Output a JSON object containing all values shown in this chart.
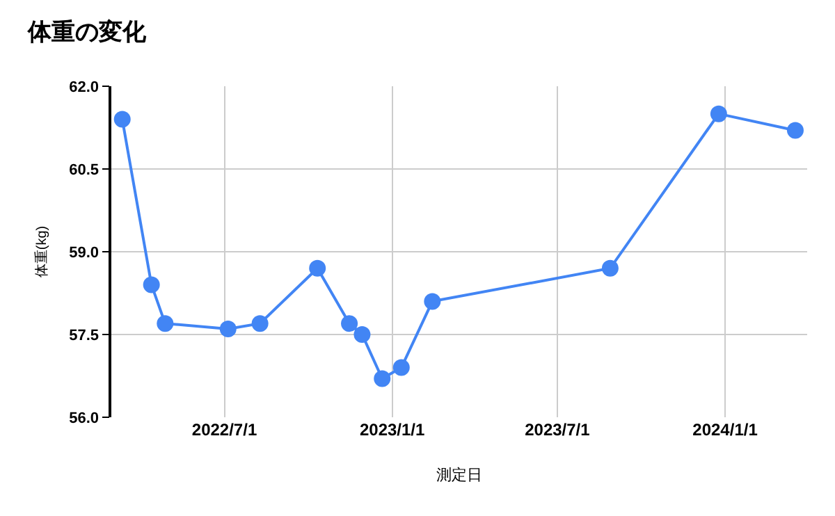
{
  "chart_data": {
    "type": "line",
    "title": "体重の変化",
    "xlabel": "測定日",
    "ylabel": "体重(kg)",
    "x": [
      "2022-03-11",
      "2022-04-12",
      "2022-04-27",
      "2022-07-05",
      "2022-08-09",
      "2022-10-11",
      "2022-11-15",
      "2022-11-29",
      "2022-12-21",
      "2023-01-11",
      "2023-02-14",
      "2023-08-28",
      "2023-12-25",
      "2024-03-18"
    ],
    "series": [
      {
        "color": "#4285f4",
        "values": [
          61.4,
          58.4,
          57.7,
          57.6,
          57.7,
          58.7,
          57.7,
          57.5,
          56.7,
          56.9,
          58.1,
          58.7,
          61.5,
          61.2
        ]
      }
    ],
    "xlim": [
      "2022-02-27",
      "2024-03-31"
    ],
    "xticks": [
      {
        "value": "2022-07-01",
        "label": "2022/7/1"
      },
      {
        "value": "2023-01-01",
        "label": "2023/1/1"
      },
      {
        "value": "2023-07-01",
        "label": "2023/7/1"
      },
      {
        "value": "2024-01-01",
        "label": "2024/1/1"
      }
    ],
    "ylim": [
      56,
      62
    ],
    "yticks": [
      {
        "value": 56,
        "label": "56.0"
      },
      {
        "value": 57.5,
        "label": "57.5"
      },
      {
        "value": 59,
        "label": "59.0"
      },
      {
        "value": 60.5,
        "label": "60.5"
      },
      {
        "value": 62,
        "label": "62.0"
      }
    ],
    "grid": true,
    "marker": "circle",
    "line_style": "solid"
  }
}
